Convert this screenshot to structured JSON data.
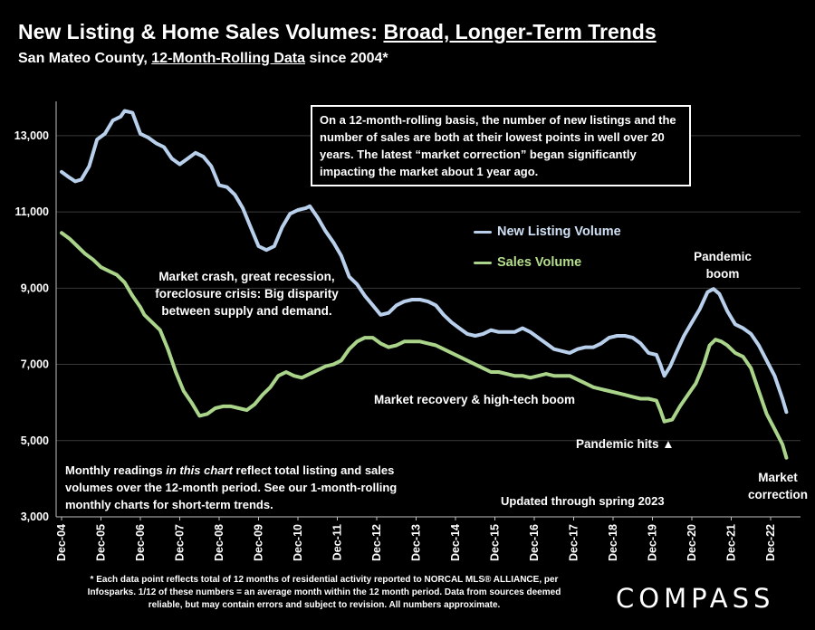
{
  "header": {
    "title_part1": "New Listing & Home Sales Volumes: ",
    "title_part2": "Broad, Longer-Term Trends",
    "subtitle_part1": "San Mateo County, ",
    "subtitle_part2": "12-Month-Rolling Data",
    "subtitle_part3": " since 2004*"
  },
  "callout": "On a 12-month-rolling basis, the number of new listings and the number of sales are both at their lowest points in well over 20 years. The latest “market correction” began significantly impacting the market about 1 year ago.",
  "annotations": {
    "crash": "Market crash,  great recession, foreclosure crisis: Big disparity between supply and demand.",
    "recovery": "Market recovery & high-tech boom",
    "pandemic_hits": "Pandemic hits ▲",
    "pandemic_boom": "Pandemic boom",
    "correction": "Market correction",
    "updated": "Updated through spring 2023",
    "readings_part1": "Monthly readings ",
    "readings_italic": "in this chart",
    "readings_part2": " reflect total listing and sales volumes over the 12-month period. See our 1-month-rolling monthly charts for short-term trends."
  },
  "footnote": "* Each data point reflects total of 12 months of residential activity reported to NORCAL MLS® ALLIANCE, per Infosparks. 1/12 of these numbers = an average month within the 12 month period. Data from sources deemed reliable, but may contain errors and subject to revision. All numbers approximate.",
  "logo": "COMPASS",
  "chart_data": {
    "type": "line",
    "x_labels": [
      "Dec-04",
      "Dec-05",
      "Dec-06",
      "Dec-07",
      "Dec-08",
      "Dec-09",
      "Dec-10",
      "Dec-11",
      "Dec-12",
      "Dec-13",
      "Dec-14",
      "Dec-15",
      "Dec-16",
      "Dec-17",
      "Dec-18",
      "Dec-19",
      "Dec-20",
      "Dec-21",
      "Dec-22"
    ],
    "y_ticks": [
      3000,
      5000,
      7000,
      9000,
      11000,
      13000
    ],
    "y_tick_labels": [
      "3,000",
      "5,000",
      "7,000",
      "9,000",
      "11,000",
      "13,000"
    ],
    "ylim": [
      3000,
      13900
    ],
    "xlim": [
      0,
      18.5
    ],
    "grid": true,
    "legend_placement": "center-right",
    "series": [
      {
        "name": "New Listing Volume",
        "color": "#b8d0ec",
        "points": [
          [
            0,
            12050
          ],
          [
            0.2,
            11900
          ],
          [
            0.35,
            11800
          ],
          [
            0.5,
            11850
          ],
          [
            0.7,
            12200
          ],
          [
            0.9,
            12900
          ],
          [
            1.1,
            13050
          ],
          [
            1.3,
            13400
          ],
          [
            1.5,
            13500
          ],
          [
            1.6,
            13650
          ],
          [
            1.8,
            13600
          ],
          [
            2.0,
            13050
          ],
          [
            2.2,
            12950
          ],
          [
            2.4,
            12800
          ],
          [
            2.6,
            12700
          ],
          [
            2.8,
            12400
          ],
          [
            3.0,
            12250
          ],
          [
            3.2,
            12400
          ],
          [
            3.4,
            12550
          ],
          [
            3.6,
            12450
          ],
          [
            3.8,
            12200
          ],
          [
            4.0,
            11700
          ],
          [
            4.2,
            11650
          ],
          [
            4.4,
            11450
          ],
          [
            4.6,
            11100
          ],
          [
            4.8,
            10600
          ],
          [
            5.0,
            10100
          ],
          [
            5.2,
            10000
          ],
          [
            5.4,
            10100
          ],
          [
            5.6,
            10600
          ],
          [
            5.8,
            10950
          ],
          [
            6.0,
            11050
          ],
          [
            6.2,
            11100
          ],
          [
            6.3,
            11150
          ],
          [
            6.5,
            10850
          ],
          [
            6.7,
            10500
          ],
          [
            6.9,
            10200
          ],
          [
            7.1,
            9850
          ],
          [
            7.3,
            9300
          ],
          [
            7.5,
            9100
          ],
          [
            7.7,
            8800
          ],
          [
            7.9,
            8550
          ],
          [
            8.1,
            8300
          ],
          [
            8.3,
            8350
          ],
          [
            8.5,
            8550
          ],
          [
            8.7,
            8650
          ],
          [
            8.9,
            8700
          ],
          [
            9.1,
            8700
          ],
          [
            9.3,
            8650
          ],
          [
            9.5,
            8550
          ],
          [
            9.7,
            8300
          ],
          [
            9.9,
            8100
          ],
          [
            10.1,
            7950
          ],
          [
            10.3,
            7800
          ],
          [
            10.5,
            7750
          ],
          [
            10.7,
            7800
          ],
          [
            10.9,
            7900
          ],
          [
            11.1,
            7850
          ],
          [
            11.3,
            7850
          ],
          [
            11.5,
            7850
          ],
          [
            11.7,
            7950
          ],
          [
            11.9,
            7850
          ],
          [
            12.1,
            7700
          ],
          [
            12.3,
            7550
          ],
          [
            12.5,
            7400
          ],
          [
            12.7,
            7350
          ],
          [
            12.9,
            7300
          ],
          [
            13.1,
            7400
          ],
          [
            13.3,
            7450
          ],
          [
            13.5,
            7450
          ],
          [
            13.7,
            7550
          ],
          [
            13.9,
            7700
          ],
          [
            14.1,
            7750
          ],
          [
            14.3,
            7750
          ],
          [
            14.5,
            7700
          ],
          [
            14.7,
            7550
          ],
          [
            14.9,
            7300
          ],
          [
            15.1,
            7250
          ],
          [
            15.2,
            7000
          ],
          [
            15.3,
            6700
          ],
          [
            15.45,
            6950
          ],
          [
            15.6,
            7300
          ],
          [
            15.8,
            7750
          ],
          [
            16.0,
            8100
          ],
          [
            16.2,
            8450
          ],
          [
            16.4,
            8900
          ],
          [
            16.55,
            8980
          ],
          [
            16.7,
            8850
          ],
          [
            16.9,
            8400
          ],
          [
            17.1,
            8050
          ],
          [
            17.3,
            7950
          ],
          [
            17.5,
            7800
          ],
          [
            17.7,
            7500
          ],
          [
            17.9,
            7100
          ],
          [
            18.1,
            6700
          ],
          [
            18.3,
            6100
          ],
          [
            18.4,
            5750
          ]
        ]
      },
      {
        "name": "Sales Volume",
        "color": "#a9d489",
        "points": [
          [
            0,
            10450
          ],
          [
            0.2,
            10300
          ],
          [
            0.4,
            10100
          ],
          [
            0.6,
            9900
          ],
          [
            0.8,
            9750
          ],
          [
            1.0,
            9550
          ],
          [
            1.2,
            9450
          ],
          [
            1.4,
            9350
          ],
          [
            1.6,
            9150
          ],
          [
            1.8,
            8800
          ],
          [
            2.0,
            8500
          ],
          [
            2.1,
            8300
          ],
          [
            2.5,
            7900
          ],
          [
            2.7,
            7400
          ],
          [
            2.9,
            6800
          ],
          [
            3.1,
            6300
          ],
          [
            3.3,
            6000
          ],
          [
            3.5,
            5650
          ],
          [
            3.7,
            5700
          ],
          [
            3.9,
            5850
          ],
          [
            4.1,
            5900
          ],
          [
            4.3,
            5900
          ],
          [
            4.5,
            5850
          ],
          [
            4.7,
            5800
          ],
          [
            4.9,
            5950
          ],
          [
            5.1,
            6200
          ],
          [
            5.3,
            6400
          ],
          [
            5.5,
            6700
          ],
          [
            5.7,
            6800
          ],
          [
            5.9,
            6700
          ],
          [
            6.1,
            6650
          ],
          [
            6.3,
            6750
          ],
          [
            6.5,
            6850
          ],
          [
            6.7,
            6950
          ],
          [
            6.9,
            7000
          ],
          [
            7.1,
            7100
          ],
          [
            7.3,
            7400
          ],
          [
            7.5,
            7600
          ],
          [
            7.7,
            7700
          ],
          [
            7.9,
            7700
          ],
          [
            8.1,
            7550
          ],
          [
            8.3,
            7450
          ],
          [
            8.5,
            7500
          ],
          [
            8.7,
            7600
          ],
          [
            8.9,
            7600
          ],
          [
            9.1,
            7600
          ],
          [
            9.3,
            7550
          ],
          [
            9.5,
            7500
          ],
          [
            9.7,
            7400
          ],
          [
            9.9,
            7300
          ],
          [
            10.1,
            7200
          ],
          [
            10.3,
            7100
          ],
          [
            10.5,
            7000
          ],
          [
            10.7,
            6900
          ],
          [
            10.9,
            6800
          ],
          [
            11.1,
            6800
          ],
          [
            11.3,
            6750
          ],
          [
            11.5,
            6700
          ],
          [
            11.7,
            6700
          ],
          [
            11.9,
            6650
          ],
          [
            12.1,
            6700
          ],
          [
            12.3,
            6750
          ],
          [
            12.5,
            6700
          ],
          [
            12.7,
            6700
          ],
          [
            12.9,
            6700
          ],
          [
            13.1,
            6600
          ],
          [
            13.3,
            6500
          ],
          [
            13.5,
            6400
          ],
          [
            13.7,
            6350
          ],
          [
            13.9,
            6300
          ],
          [
            14.1,
            6250
          ],
          [
            14.3,
            6200
          ],
          [
            14.5,
            6150
          ],
          [
            14.7,
            6100
          ],
          [
            14.9,
            6100
          ],
          [
            15.1,
            6050
          ],
          [
            15.2,
            5800
          ],
          [
            15.3,
            5500
          ],
          [
            15.5,
            5550
          ],
          [
            15.7,
            5900
          ],
          [
            15.9,
            6200
          ],
          [
            16.1,
            6500
          ],
          [
            16.3,
            7000
          ],
          [
            16.45,
            7500
          ],
          [
            16.6,
            7650
          ],
          [
            16.75,
            7600
          ],
          [
            16.9,
            7500
          ],
          [
            17.1,
            7300
          ],
          [
            17.3,
            7200
          ],
          [
            17.5,
            6900
          ],
          [
            17.7,
            6300
          ],
          [
            17.9,
            5700
          ],
          [
            18.1,
            5300
          ],
          [
            18.3,
            4900
          ],
          [
            18.4,
            4550
          ]
        ]
      }
    ]
  }
}
